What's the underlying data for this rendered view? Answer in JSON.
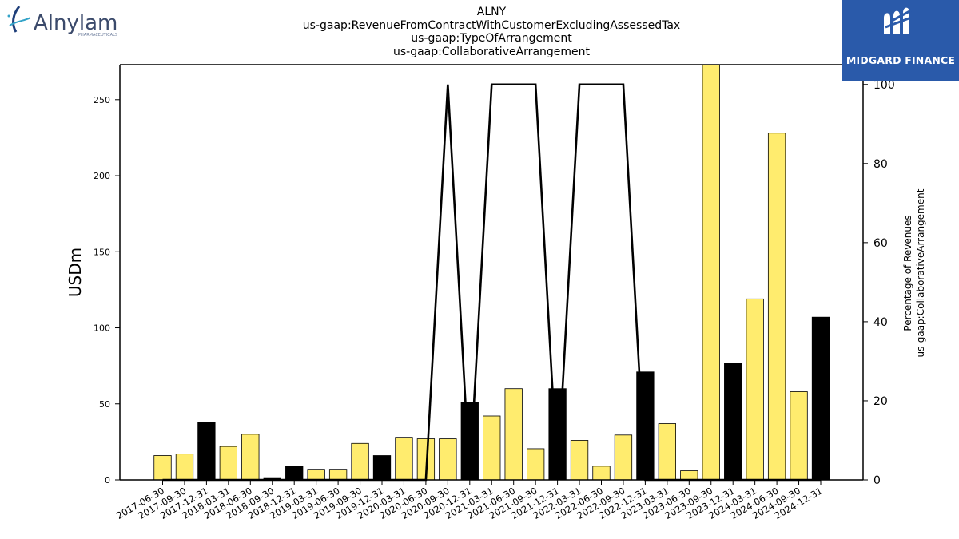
{
  "header": {
    "title_lines": [
      "ALNY",
      "us-gaap:RevenueFromContractWithCustomerExcludingAssessedTax",
      "us-gaap:TypeOfArrangement",
      "us-gaap:CollaborativeArrangement"
    ],
    "left_logo": {
      "name": "Alnylam",
      "sub": "PHARMACEUTICALS"
    },
    "right_logo": {
      "name": "MIDGARD FINANCE",
      "color": "#2a5aaa"
    }
  },
  "chart_data": {
    "type": "bar",
    "categories": [
      "2017-06-30",
      "2017-09-30",
      "2017-12-31",
      "2018-03-31",
      "2018-06-30",
      "2018-09-30",
      "2018-12-31",
      "2019-03-31",
      "2019-06-30",
      "2019-09-30",
      "2019-12-31",
      "2020-03-31",
      "2020-06-30",
      "2020-09-30",
      "2020-12-31",
      "2021-03-31",
      "2021-06-30",
      "2021-09-30",
      "2021-12-31",
      "2022-03-31",
      "2022-06-30",
      "2022-09-30",
      "2022-12-31",
      "2023-03-31",
      "2023-06-30",
      "2023-09-30",
      "2023-12-31",
      "2024-03-31",
      "2024-06-30",
      "2024-09-30",
      "2024-12-31"
    ],
    "series": [
      {
        "axis": "left",
        "type": "bar",
        "values": [
          16,
          17,
          38,
          22,
          30,
          1.5,
          9,
          7,
          7,
          24,
          16,
          28,
          27,
          27,
          51,
          42,
          60,
          20.5,
          60,
          26,
          9,
          29.5,
          71,
          37,
          6,
          273,
          76.5,
          119,
          228,
          58,
          107
        ],
        "colors": [
          "yellow",
          "yellow",
          "black",
          "yellow",
          "yellow",
          "black",
          "black",
          "yellow",
          "yellow",
          "yellow",
          "black",
          "yellow",
          "yellow",
          "yellow",
          "black",
          "yellow",
          "yellow",
          "yellow",
          "black",
          "yellow",
          "yellow",
          "yellow",
          "black",
          "yellow",
          "yellow",
          "yellow",
          "black",
          "yellow",
          "yellow",
          "yellow",
          "black"
        ]
      },
      {
        "axis": "right",
        "type": "line",
        "values": [
          0,
          0,
          0,
          0,
          0,
          0,
          0,
          0,
          0,
          0,
          0,
          0,
          0,
          100,
          0,
          100,
          100,
          100,
          0,
          100,
          100,
          100,
          0,
          0,
          0,
          0,
          0,
          0,
          0,
          0,
          0
        ]
      }
    ],
    "ylabel": "USDm",
    "y2label_lines": [
      "Percentage of Revenues",
      "us-gaap:CollaborativeArrangement"
    ],
    "ylim": [
      0,
      273
    ],
    "y2lim": [
      0,
      105
    ],
    "yticks": [
      0,
      50,
      100,
      150,
      200,
      250
    ],
    "y2ticks": [
      0,
      20,
      40,
      60,
      80,
      100
    ],
    "grid": false,
    "palette": {
      "yellow": "#ffec6e",
      "black": "#000000",
      "line": "#000000"
    }
  }
}
